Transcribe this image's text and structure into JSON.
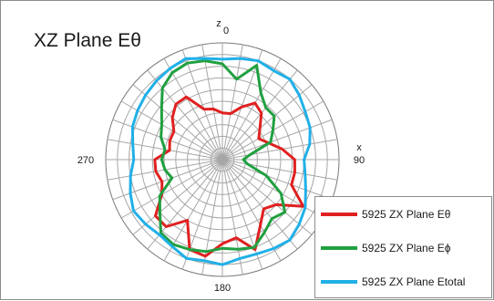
{
  "chart_data": {
    "type": "radar",
    "title": "XZ Plane Eθ",
    "angle_labels": [
      {
        "angle": 0,
        "text": "0"
      },
      {
        "angle": 90,
        "text": "90"
      },
      {
        "angle": 180,
        "text": "180"
      },
      {
        "angle": 270,
        "text": "270"
      }
    ],
    "axis_labels": [
      {
        "angle": 0,
        "text": "z"
      },
      {
        "angle": 90,
        "text": "x"
      }
    ],
    "rings": 10,
    "spokes_deg": 10,
    "rlim": [
      0,
      1
    ],
    "grid": true,
    "legend_position": "bottom-right",
    "angles": [
      0,
      10,
      20,
      30,
      40,
      50,
      60,
      70,
      80,
      90,
      100,
      110,
      120,
      130,
      140,
      150,
      160,
      170,
      180,
      190,
      200,
      210,
      220,
      230,
      240,
      250,
      260,
      270,
      280,
      290,
      300,
      310,
      320,
      330,
      340,
      350
    ],
    "series": [
      {
        "name": "5925 ZX Plane Eθ",
        "color": "#e02020",
        "values": [
          0.4,
          0.4,
          0.48,
          0.56,
          0.52,
          0.42,
          0.36,
          0.42,
          0.52,
          0.62,
          0.63,
          0.63,
          0.8,
          0.6,
          0.55,
          0.65,
          0.82,
          0.68,
          0.72,
          0.84,
          0.82,
          0.6,
          0.75,
          0.75,
          0.6,
          0.55,
          0.58,
          0.58,
          0.46,
          0.48,
          0.48,
          0.56,
          0.62,
          0.62,
          0.46,
          0.44
        ]
      },
      {
        "name": "5925 ZX Plane Eϕ",
        "color": "#20a040",
        "values": [
          0.82,
          0.7,
          0.86,
          0.66,
          0.58,
          0.58,
          0.5,
          0.44,
          0.24,
          0.18,
          0.22,
          0.4,
          0.58,
          0.7,
          0.66,
          0.72,
          0.8,
          0.78,
          0.76,
          0.8,
          0.82,
          0.84,
          0.82,
          0.7,
          0.62,
          0.46,
          0.5,
          0.52,
          0.5,
          0.56,
          0.6,
          0.68,
          0.8,
          0.86,
          0.88,
          0.86
        ]
      },
      {
        "name": "5925 ZX Plane Etotal",
        "color": "#20b0e8",
        "values": [
          0.86,
          0.88,
          0.9,
          0.88,
          0.9,
          0.86,
          0.82,
          0.8,
          0.76,
          0.7,
          0.72,
          0.76,
          0.82,
          0.86,
          0.9,
          0.88,
          0.86,
          0.86,
          0.9,
          0.88,
          0.9,
          0.86,
          0.84,
          0.86,
          0.88,
          0.84,
          0.8,
          0.76,
          0.78,
          0.82,
          0.84,
          0.86,
          0.88,
          0.9,
          0.92,
          0.88
        ]
      }
    ]
  }
}
